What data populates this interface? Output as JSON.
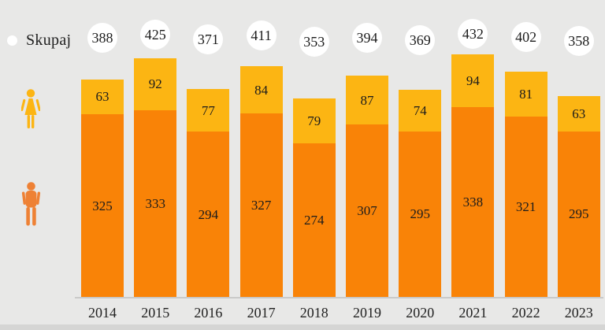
{
  "legend": {
    "total": {
      "label": "Skupaj",
      "marker": "white-circle-icon"
    },
    "female_series_marker": "female-person-icon",
    "male_series_marker": "male-person-icon"
  },
  "colors": {
    "background": "#e8e8e7",
    "female_segment": "#fcb513",
    "male_segment": "#f98307",
    "female_icon": "#fcb513",
    "male_icon": "#ee8135",
    "total_circle_bg": "#ffffff",
    "text": "#1c1c1c",
    "axis_line": "#c9c9c8",
    "bottom_strip": "#d5d5d4"
  },
  "chart_data": {
    "type": "bar",
    "stacked": true,
    "title": "",
    "xlabel": "",
    "ylabel": "",
    "grid": false,
    "legend_position": "left",
    "value_labels": "inside-segments",
    "ylim": [
      0,
      530
    ],
    "categories": [
      "2014",
      "2015",
      "2016",
      "2017",
      "2018",
      "2019",
      "2020",
      "2021",
      "2022",
      "2023"
    ],
    "series": [
      {
        "name": "male",
        "icon": "male-person-icon",
        "color": "#f98307",
        "values": [
          325,
          333,
          294,
          327,
          274,
          307,
          295,
          338,
          321,
          295
        ]
      },
      {
        "name": "female",
        "icon": "female-person-icon",
        "color": "#fcb513",
        "values": [
          63,
          92,
          77,
          84,
          79,
          87,
          74,
          94,
          81,
          63
        ]
      }
    ],
    "totals": {
      "label": "Skupaj",
      "marker": "white-circle-icon",
      "values": [
        388,
        425,
        371,
        411,
        353,
        394,
        369,
        432,
        402,
        358
      ]
    }
  }
}
